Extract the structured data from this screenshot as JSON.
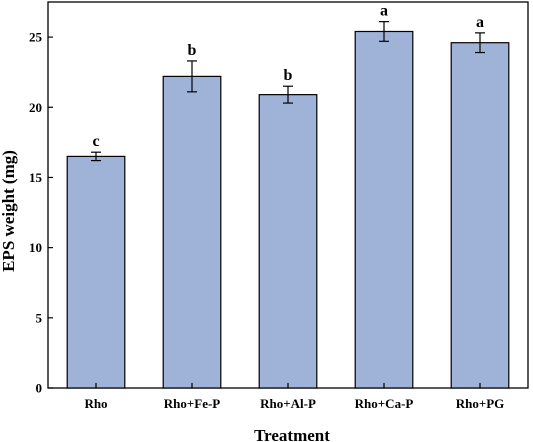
{
  "chart_data": {
    "type": "bar",
    "title": "",
    "xlabel": "Treatment",
    "ylabel": "EPS weight (mg)",
    "categories": [
      "Rho",
      "Rho+Fe-P",
      "Rho+Al-P",
      "Rho+Ca-P",
      "Rho+PG"
    ],
    "values": [
      16.5,
      22.2,
      20.9,
      25.4,
      24.6
    ],
    "errors": [
      0.3,
      1.1,
      0.6,
      0.7,
      0.7
    ],
    "significance": [
      "c",
      "b",
      "b",
      "a",
      "a"
    ],
    "ylim": [
      0,
      27.5
    ],
    "yticks": [
      0,
      5,
      10,
      15,
      20,
      25
    ],
    "grid": false,
    "bar_color": "#9fb3d8",
    "bar_edge_color": "#000000"
  }
}
